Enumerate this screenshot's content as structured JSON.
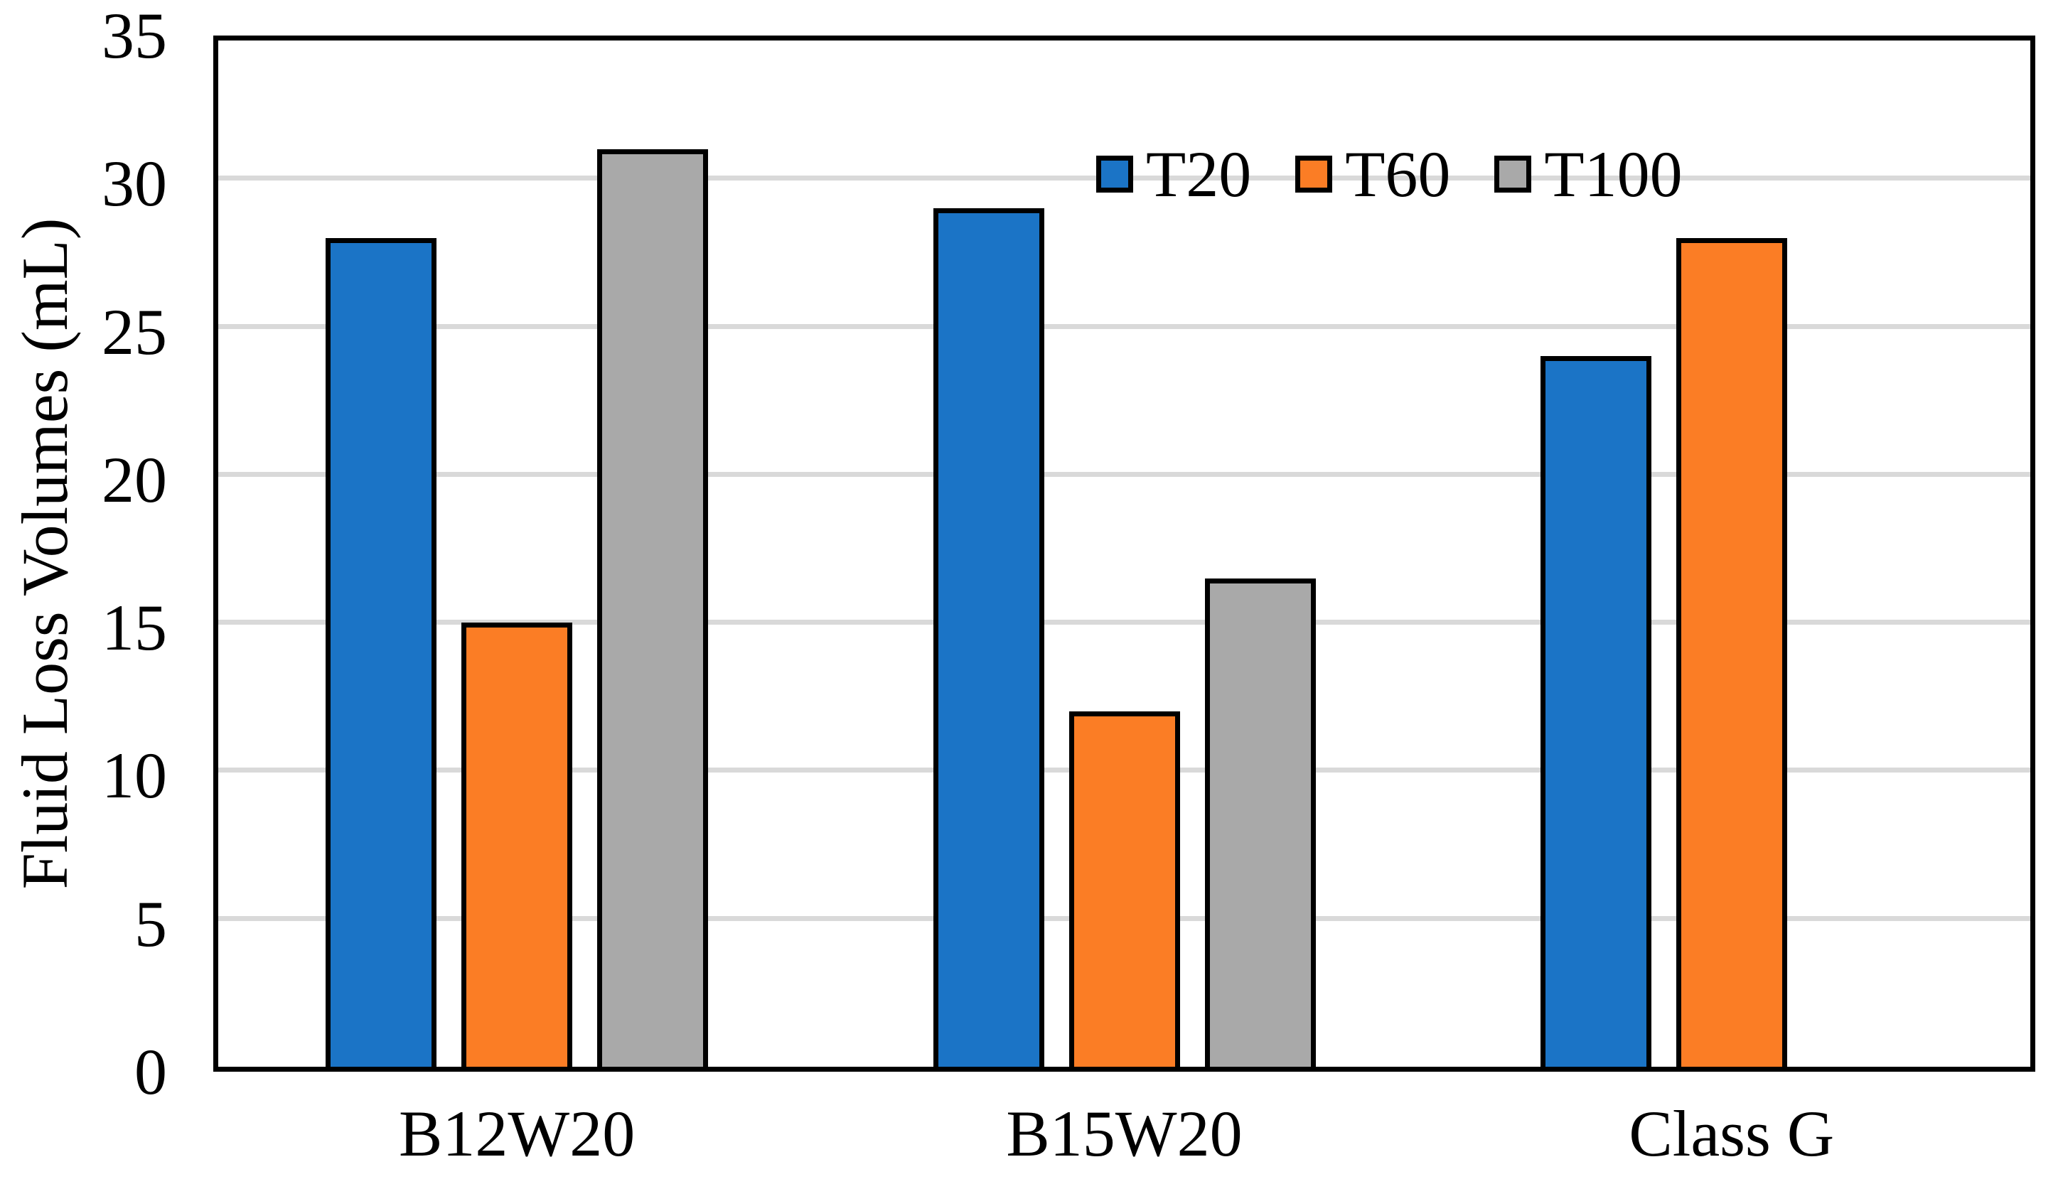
{
  "chart_data": {
    "type": "bar",
    "title": "",
    "ylabel": "Fluid Loss Volumes (mL)",
    "xlabel": "",
    "categories": [
      "B12W20",
      "B15W20",
      "Class G"
    ],
    "series": [
      {
        "name": "T20",
        "color": "#1B74C6",
        "values": [
          28,
          29,
          24
        ]
      },
      {
        "name": "T60",
        "color": "#FB7D25",
        "values": [
          15,
          12,
          28
        ]
      },
      {
        "name": "T100",
        "color": "#A9A9A9",
        "values": [
          31,
          16.5,
          null
        ]
      }
    ],
    "ylim": [
      0,
      35
    ],
    "yticks": [
      0,
      5,
      10,
      15,
      20,
      25,
      30,
      35
    ],
    "grid": "horizontal",
    "gridline_color": "#D9D9D9",
    "plot_border_color": "#000000",
    "bar_border_color": "#000000",
    "legend_position": "top-center-inside",
    "legend_entries": [
      "T20",
      "T60",
      "T100"
    ]
  }
}
